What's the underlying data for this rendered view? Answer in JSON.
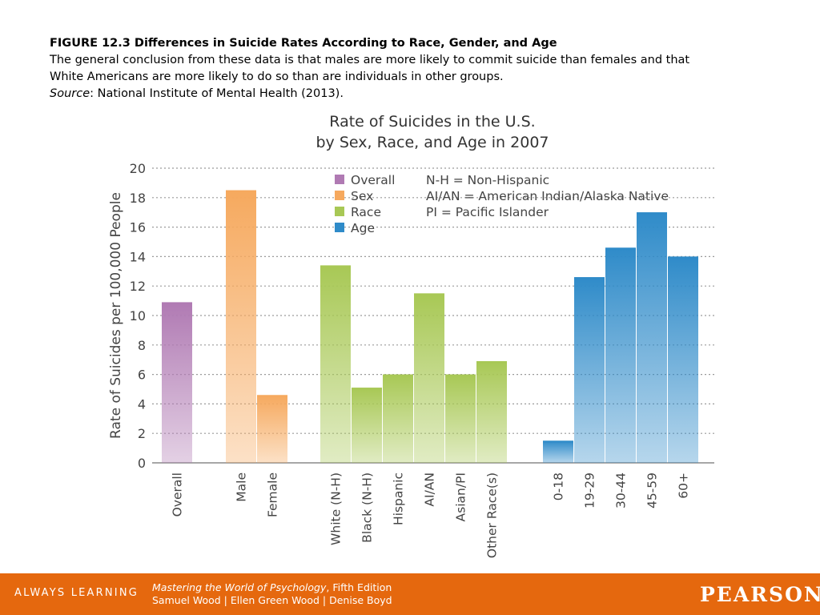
{
  "caption": {
    "figure_title": "FIGURE 12.3 Differences in Suicide Rates According to Race, Gender, and Age",
    "body_line_1": "The general conclusion from these data is that males are more likely to commit suicide than females and that",
    "body_line_2": "White Americans are more likely to do so than are individuals in other groups.",
    "source_label": "Source",
    "source_text": ": National Institute of Mental Health (2013)."
  },
  "chart_data": {
    "type": "bar",
    "title_line_1": "Rate of Suicides in the U.S.",
    "title_line_2": "by Sex, Race, and Age in 2007",
    "xlabel": "",
    "ylabel": "Rate of Suicides per 100,000 People",
    "ylim": [
      0,
      20
    ],
    "yticks": [
      0,
      2,
      4,
      6,
      8,
      10,
      12,
      14,
      16,
      18,
      20
    ],
    "grid": "dotted horizontal",
    "legend_placement": "top",
    "legend": [
      {
        "name": "Overall",
        "color": "#b07ab3"
      },
      {
        "name": "Sex",
        "color": "#f6a95e"
      },
      {
        "name": "Race",
        "color": "#a8c855"
      },
      {
        "name": "Age",
        "color": "#2f8bc9"
      }
    ],
    "abbreviations": [
      "N-H = Non-Hispanic",
      "AI/AN = American Indian/Alaska Native",
      "PI = Pacific Islander"
    ],
    "groups": [
      {
        "name": "Overall",
        "color": "#b07ab3",
        "categories": [
          "Overall"
        ],
        "values": [
          10.9
        ]
      },
      {
        "name": "Sex",
        "color": "#f6a95e",
        "categories": [
          "Male",
          "Female"
        ],
        "values": [
          18.5,
          4.6
        ]
      },
      {
        "name": "Race",
        "color": "#a8c855",
        "categories": [
          "White (N-H)",
          "Black (N-H)",
          "Hispanic",
          "AI/AN",
          "Asian/PI",
          "Other Race(s)"
        ],
        "values": [
          13.4,
          5.1,
          6.0,
          11.5,
          6.0,
          6.9
        ]
      },
      {
        "name": "Age",
        "color": "#2f8bc9",
        "categories": [
          "0-18",
          "19-29",
          "30-44",
          "45-59",
          "60+"
        ],
        "values": [
          1.5,
          12.6,
          14.6,
          17.0,
          14.0
        ]
      }
    ]
  },
  "footer": {
    "always_learning": "ALWAYS LEARNING",
    "book_title": "Mastering the World of Psychology",
    "edition": ", Fifth Edition",
    "authors": "Samuel Wood | Ellen Green Wood | Denise Boyd",
    "publisher": "PEARSON",
    "background": "#e5680e"
  }
}
